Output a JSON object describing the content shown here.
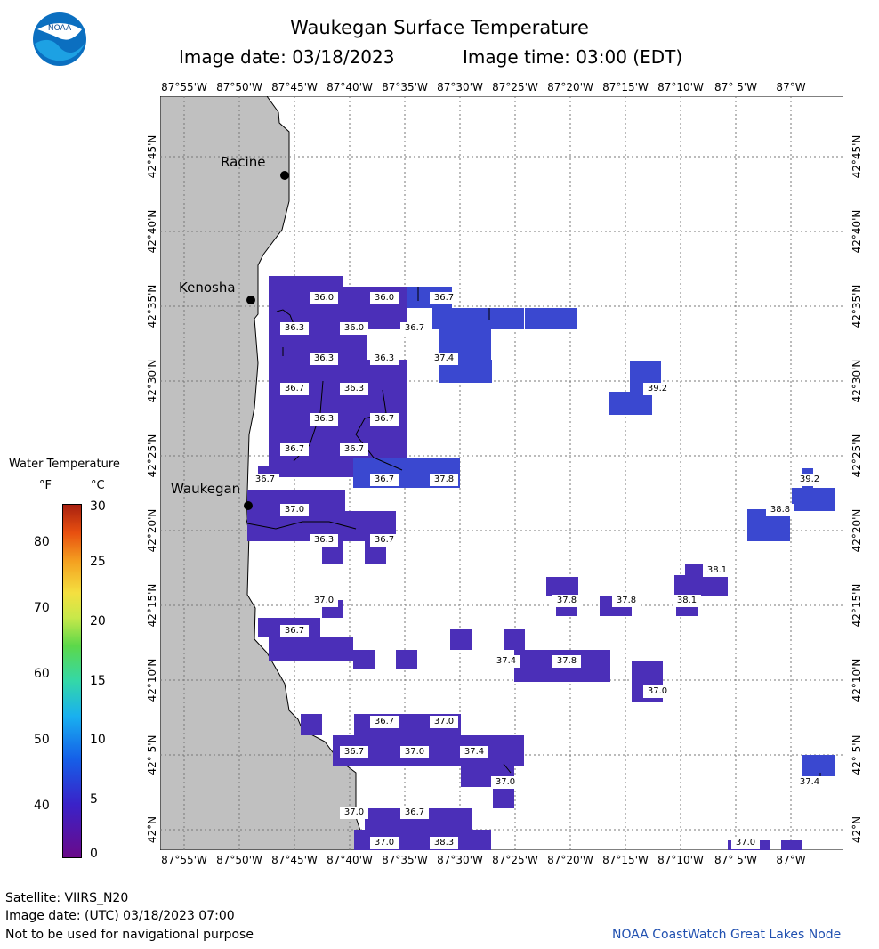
{
  "header": {
    "title": "Waukegan Surface Temperature",
    "image_date": "Image date: 03/18/2023",
    "image_time": "Image time: 03:00 (EDT)",
    "logo_text": "NOAA"
  },
  "map": {
    "longitude_labels": [
      "87°55'W",
      "87°50'W",
      "87°45'W",
      "87°40'W",
      "87°35'W",
      "87°30'W",
      "87°25'W",
      "87°20'W",
      "87°15'W",
      "87°10'W",
      "87° 5'W",
      "87°W"
    ],
    "latitude_labels": [
      "42°45'N",
      "42°40'N",
      "42°35'N",
      "42°30'N",
      "42°25'N",
      "42°20'N",
      "42°15'N",
      "42°10'N",
      "42° 5'N",
      "42°N"
    ],
    "cities": [
      {
        "name": "Racine"
      },
      {
        "name": "Kenosha"
      },
      {
        "name": "Waukegan"
      }
    ],
    "temperature_labels": [
      "36.0",
      "36.0",
      "36.7",
      "36.3",
      "36.0",
      "36.7",
      "36.3",
      "36.3",
      "37.4",
      "39.2",
      "36.7",
      "36.3",
      "36.3",
      "36.7",
      "36.7",
      "36.7",
      "36.7",
      "36.7",
      "37.8",
      "39.2",
      "37.0",
      "38.8",
      "36.3",
      "36.7",
      "38.1",
      "37.0",
      "37.8",
      "37.8",
      "38.1",
      "36.7",
      "37.4",
      "37.8",
      "37.0",
      "36.7",
      "37.0",
      "36.7",
      "37.0",
      "37.4",
      "37.0",
      "37.4",
      "37.0",
      "36.7",
      "37.0",
      "38.3",
      "37.0"
    ],
    "land_color": "#c0c0c0",
    "water_pixel_color_cold": "#4b2fb8",
    "water_pixel_color_warm": "#3a48d0"
  },
  "legend": {
    "title": "Water Temperature",
    "unit_f": "°F",
    "unit_c": "°C",
    "f_ticks": [
      "80",
      "70",
      "60",
      "50",
      "40"
    ],
    "c_ticks": [
      "30",
      "25",
      "20",
      "15",
      "10",
      "5",
      "0"
    ]
  },
  "footer": {
    "satellite": "Satellite: VIIRS_N20",
    "utc_date": "Image date: (UTC) 03/18/2023  07:00",
    "disclaimer": "Not to be used for navigational purpose",
    "credit": "NOAA CoastWatch Great Lakes Node",
    "credit_color": "#2050b0"
  }
}
